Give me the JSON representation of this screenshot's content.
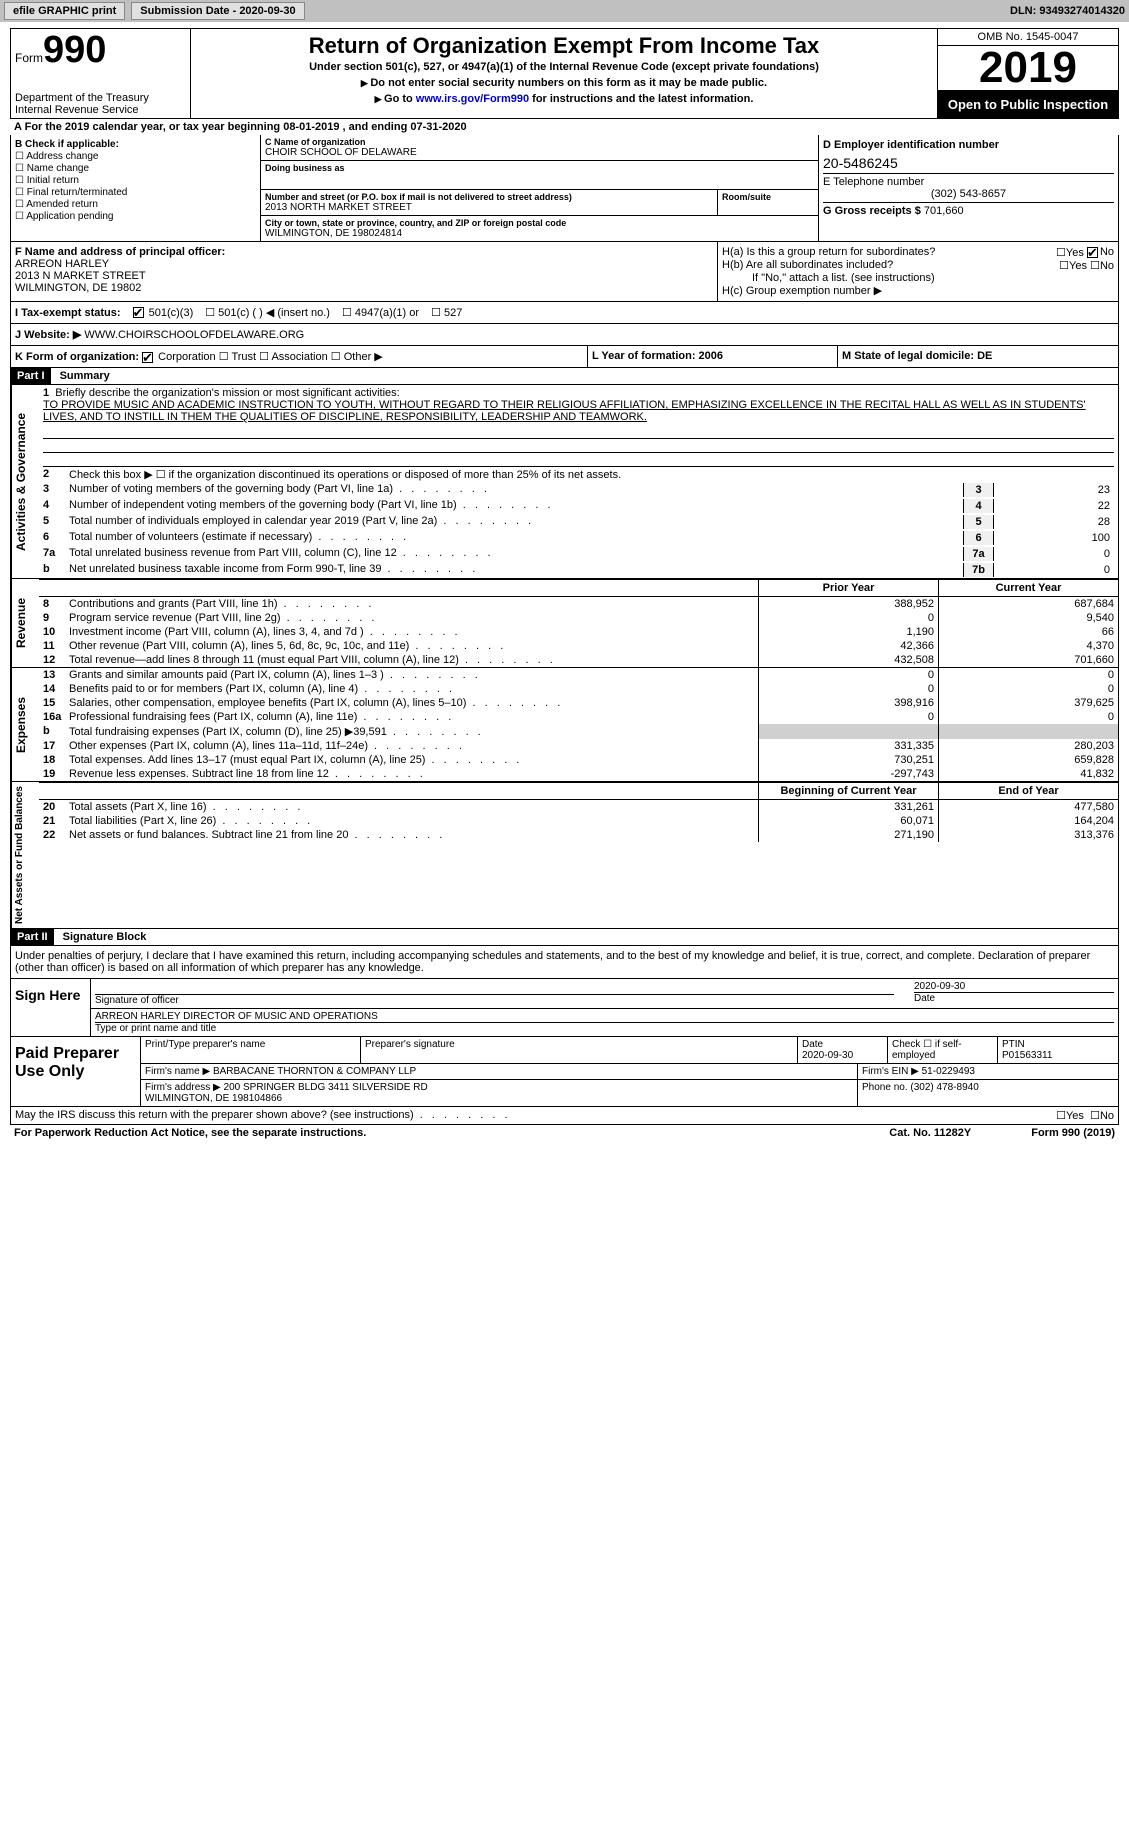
{
  "topbar": {
    "efile": "efile GRAPHIC print",
    "submission_label": "Submission Date - 2020-09-30",
    "dln": "DLN: 93493274014320"
  },
  "header": {
    "form_word": "Form",
    "form_no": "990",
    "dept1": "Department of the Treasury",
    "dept2": "Internal Revenue Service",
    "title": "Return of Organization Exempt From Income Tax",
    "sub": "Under section 501(c), 527, or 4947(a)(1) of the Internal Revenue Code (except private foundations)",
    "instr1": "Do not enter social security numbers on this form as it may be made public.",
    "instr2_pre": "Go to ",
    "instr2_link": "www.irs.gov/Form990",
    "instr2_post": " for instructions and the latest information.",
    "omb": "OMB No. 1545-0047",
    "year": "2019",
    "open": "Open to Public Inspection"
  },
  "period": "For the 2019 calendar year, or tax year beginning 08-01-2019    , and ending 07-31-2020",
  "boxB": {
    "title": "B Check if applicable:",
    "items": [
      "Address change",
      "Name change",
      "Initial return",
      "Final return/terminated",
      "Amended return",
      "Application pending"
    ]
  },
  "boxC": {
    "name_lbl": "C Name of organization",
    "name": "CHOIR SCHOOL OF DELAWARE",
    "dba_lbl": "Doing business as",
    "dba": "",
    "street_lbl": "Number and street (or P.O. box if mail is not delivered to street address)",
    "room_lbl": "Room/suite",
    "street": "2013 NORTH MARKET STREET",
    "city_lbl": "City or town, state or province, country, and ZIP or foreign postal code",
    "city": "WILMINGTON, DE  198024814"
  },
  "boxD": {
    "lbl": "D Employer identification number",
    "val": "20-5486245"
  },
  "boxE": {
    "lbl": "E Telephone number",
    "val": "(302) 543-8657"
  },
  "boxG": {
    "lbl": "G Gross receipts $",
    "val": "701,660"
  },
  "boxF": {
    "lbl": "F Name and address of principal officer:",
    "name": "ARREON HARLEY",
    "street": "2013 N MARKET STREET",
    "city": "WILMINGTON, DE  19802"
  },
  "boxH": {
    "a": "H(a)  Is this a group return for subordinates?",
    "b": "H(b)  Are all subordinates included?",
    "b_note": "If \"No,\" attach a list. (see instructions)",
    "c": "H(c)  Group exemption number ▶",
    "yes": "Yes",
    "no": "No"
  },
  "boxI": {
    "lbl": "I   Tax-exempt status:",
    "opts": [
      "501(c)(3)",
      "501(c) (  ) ◀ (insert no.)",
      "4947(a)(1) or",
      "527"
    ]
  },
  "boxJ": {
    "lbl": "J   Website: ▶",
    "val": "WWW.CHOIRSCHOOLOFDELAWARE.ORG"
  },
  "boxK": {
    "lbl": "K Form of organization:",
    "opts": [
      "Corporation",
      "Trust",
      "Association",
      "Other ▶"
    ]
  },
  "boxL": "L Year of formation: 2006",
  "boxM": "M State of legal domicile: DE",
  "part1": {
    "hdr": "Part I",
    "title": "Summary",
    "q1": "Briefly describe the organization's mission or most significant activities:",
    "mission": "TO PROVIDE MUSIC AND ACADEMIC INSTRUCTION TO YOUTH, WITHOUT REGARD TO THEIR RELIGIOUS AFFILIATION, EMPHASIZING EXCELLENCE IN THE RECITAL HALL AS WELL AS IN STUDENTS' LIVES, AND TO INSTILL IN THEM THE QUALITIES OF DISCIPLINE, RESPONSIBILITY, LEADERSHIP AND TEAMWORK.",
    "q2": "Check this box ▶ ☐  if the organization discontinued its operations or disposed of more than 25% of its net assets.",
    "lines": [
      {
        "n": "3",
        "t": "Number of voting members of the governing body (Part VI, line 1a)",
        "k": "3",
        "v": "23"
      },
      {
        "n": "4",
        "t": "Number of independent voting members of the governing body (Part VI, line 1b)",
        "k": "4",
        "v": "22"
      },
      {
        "n": "5",
        "t": "Total number of individuals employed in calendar year 2019 (Part V, line 2a)",
        "k": "5",
        "v": "28"
      },
      {
        "n": "6",
        "t": "Total number of volunteers (estimate if necessary)",
        "k": "6",
        "v": "100"
      },
      {
        "n": "7a",
        "t": "Total unrelated business revenue from Part VIII, column (C), line 12",
        "k": "7a",
        "v": "0"
      },
      {
        "n": "b",
        "t": "Net unrelated business taxable income from Form 990-T, line 39",
        "k": "7b",
        "v": "0"
      }
    ],
    "cols": {
      "prior": "Prior Year",
      "curr": "Current Year"
    },
    "revenue_label": "Revenue",
    "revenue": [
      {
        "n": "8",
        "t": "Contributions and grants (Part VIII, line 1h)",
        "p": "388,952",
        "c": "687,684"
      },
      {
        "n": "9",
        "t": "Program service revenue (Part VIII, line 2g)",
        "p": "0",
        "c": "9,540"
      },
      {
        "n": "10",
        "t": "Investment income (Part VIII, column (A), lines 3, 4, and 7d )",
        "p": "1,190",
        "c": "66"
      },
      {
        "n": "11",
        "t": "Other revenue (Part VIII, column (A), lines 5, 6d, 8c, 9c, 10c, and 11e)",
        "p": "42,366",
        "c": "4,370"
      },
      {
        "n": "12",
        "t": "Total revenue—add lines 8 through 11 (must equal Part VIII, column (A), line 12)",
        "p": "432,508",
        "c": "701,660"
      }
    ],
    "expenses_label": "Expenses",
    "expenses": [
      {
        "n": "13",
        "t": "Grants and similar amounts paid (Part IX, column (A), lines 1–3 )",
        "p": "0",
        "c": "0"
      },
      {
        "n": "14",
        "t": "Benefits paid to or for members (Part IX, column (A), line 4)",
        "p": "0",
        "c": "0"
      },
      {
        "n": "15",
        "t": "Salaries, other compensation, employee benefits (Part IX, column (A), lines 5–10)",
        "p": "398,916",
        "c": "379,625"
      },
      {
        "n": "16a",
        "t": "Professional fundraising fees (Part IX, column (A), line 11e)",
        "p": "0",
        "c": "0"
      },
      {
        "n": "b",
        "t": "Total fundraising expenses (Part IX, column (D), line 25) ▶39,591",
        "p": "",
        "c": "",
        "shade": true
      },
      {
        "n": "17",
        "t": "Other expenses (Part IX, column (A), lines 11a–11d, 11f–24e)",
        "p": "331,335",
        "c": "280,203"
      },
      {
        "n": "18",
        "t": "Total expenses. Add lines 13–17 (must equal Part IX, column (A), line 25)",
        "p": "730,251",
        "c": "659,828"
      },
      {
        "n": "19",
        "t": "Revenue less expenses. Subtract line 18 from line 12",
        "p": "-297,743",
        "c": "41,832"
      }
    ],
    "net_label": "Net Assets or Fund Balances",
    "net_cols": {
      "b": "Beginning of Current Year",
      "e": "End of Year"
    },
    "net": [
      {
        "n": "20",
        "t": "Total assets (Part X, line 16)",
        "p": "331,261",
        "c": "477,580"
      },
      {
        "n": "21",
        "t": "Total liabilities (Part X, line 26)",
        "p": "60,071",
        "c": "164,204"
      },
      {
        "n": "22",
        "t": "Net assets or fund balances. Subtract line 21 from line 20",
        "p": "271,190",
        "c": "313,376"
      }
    ]
  },
  "part2": {
    "hdr": "Part II",
    "title": "Signature Block",
    "intro": "Under penalties of perjury, I declare that I have examined this return, including accompanying schedules and statements, and to the best of my knowledge and belief, it is true, correct, and complete. Declaration of preparer (other than officer) is based on all information of which preparer has any knowledge.",
    "sign_here": "Sign Here",
    "sig_officer": "Signature of officer",
    "sig_date": "2020-09-30",
    "date_lbl": "Date",
    "typed": "ARREON HARLEY DIRECTOR OF MUSIC AND OPERATIONS",
    "typed_lbl": "Type or print name and title",
    "paid": "Paid Preparer Use Only",
    "p_name_lbl": "Print/Type preparer's name",
    "p_sig_lbl": "Preparer's signature",
    "p_date_lbl": "Date",
    "p_date": "2020-09-30",
    "p_check_lbl": "Check ☐ if self-employed",
    "ptin_lbl": "PTIN",
    "ptin": "P01563311",
    "firm_name_lbl": "Firm's name    ▶",
    "firm_name": "BARBACANE THORNTON & COMPANY LLP",
    "firm_ein_lbl": "Firm's EIN ▶",
    "firm_ein": "51-0229493",
    "firm_addr_lbl": "Firm's address ▶",
    "firm_addr": "200 SPRINGER BLDG 3411 SILVERSIDE RD\nWILMINGTON, DE  198104866",
    "phone_lbl": "Phone no.",
    "phone": "(302) 478-8940",
    "discuss": "May the IRS discuss this return with the preparer shown above? (see instructions)",
    "yes": "Yes",
    "no": "No"
  },
  "footer": {
    "left": "For Paperwork Reduction Act Notice, see the separate instructions.",
    "mid": "Cat. No. 11282Y",
    "right": "Form 990 (2019)"
  },
  "vlabels": {
    "ag": "Activities & Governance"
  }
}
